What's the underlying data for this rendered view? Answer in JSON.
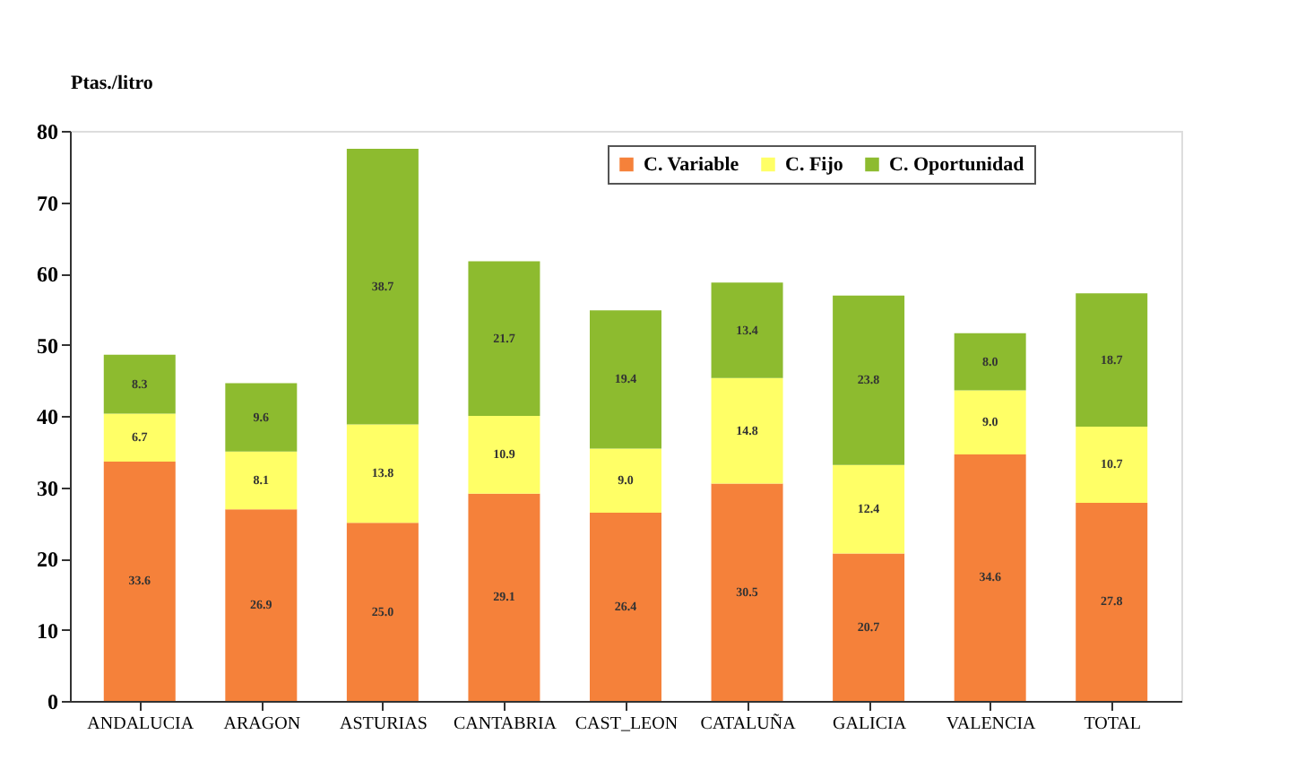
{
  "chart_data": {
    "type": "bar",
    "stacked": true,
    "ylabel": "Ptas./litro",
    "categories": [
      "ANDALUCIA",
      "ARAGON",
      "ASTURIAS",
      "CANTABRIA",
      "CAST_LEON",
      "CATALUÑA",
      "GALICIA",
      "VALENCIA",
      "TOTAL"
    ],
    "series": [
      {
        "name": "C. Variable",
        "color": "#f5813a",
        "values": [
          33.6,
          26.9,
          25.0,
          29.1,
          26.4,
          30.5,
          20.7,
          34.6,
          27.8
        ],
        "value_labels": [
          "33.6",
          "26.9",
          "25.0",
          "29.1",
          "26.4",
          "30.5",
          "20.7",
          "34.6",
          "27.8"
        ]
      },
      {
        "name": "C. Fijo",
        "color": "#ffff66",
        "values": [
          6.7,
          8.1,
          13.8,
          10.9,
          9.0,
          14.8,
          12.4,
          9.0,
          10.7
        ],
        "value_labels": [
          "6.7",
          "8.1",
          "13.8",
          "10.9",
          "9.0",
          "14.8",
          "12.4",
          "9.0",
          "10.7"
        ]
      },
      {
        "name": "C. Oportunidad",
        "color": "#8dbb2f",
        "values": [
          8.3,
          9.6,
          38.7,
          21.7,
          19.4,
          13.4,
          23.8,
          8.0,
          18.7
        ],
        "value_labels": [
          "8.3",
          "9.6",
          "38.7",
          "21.7",
          "19.4",
          "13.4",
          "23.8",
          "8.0",
          "18.7"
        ]
      }
    ],
    "ylim": [
      0,
      80
    ],
    "yticks": [
      0,
      10,
      20,
      30,
      40,
      50,
      60,
      70,
      80
    ],
    "legend": "top right",
    "grid": false
  }
}
